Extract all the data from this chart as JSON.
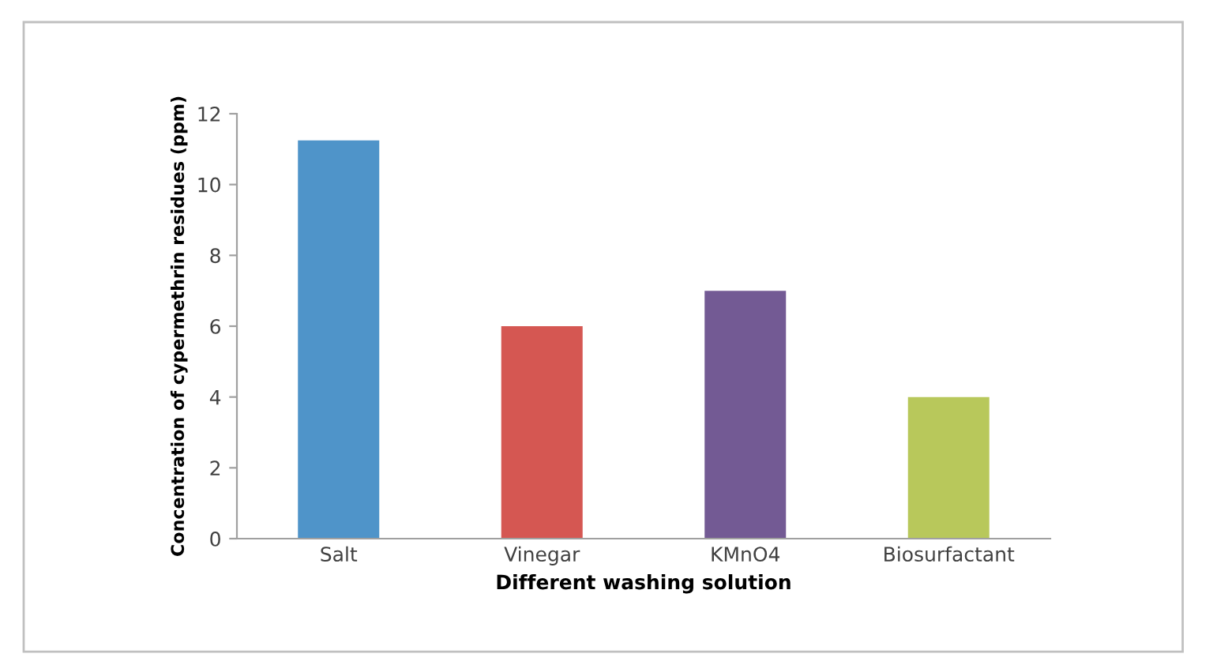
{
  "chart_data": {
    "type": "bar",
    "xlabel": "Different washing solution",
    "ylabel": "Concentration of cypermethrin residues (ppm)",
    "categories": [
      "Salt",
      "Vinegar",
      "KMnO4",
      "Biosurfactant"
    ],
    "values": [
      11.25,
      6,
      7,
      4
    ],
    "colors": [
      "#4f94c9",
      "#d55752",
      "#735a94",
      "#b8c85b"
    ],
    "ylim": [
      0,
      12
    ],
    "yticks": [
      0,
      2,
      4,
      6,
      8,
      10,
      12
    ],
    "grid": false,
    "legend": false
  }
}
